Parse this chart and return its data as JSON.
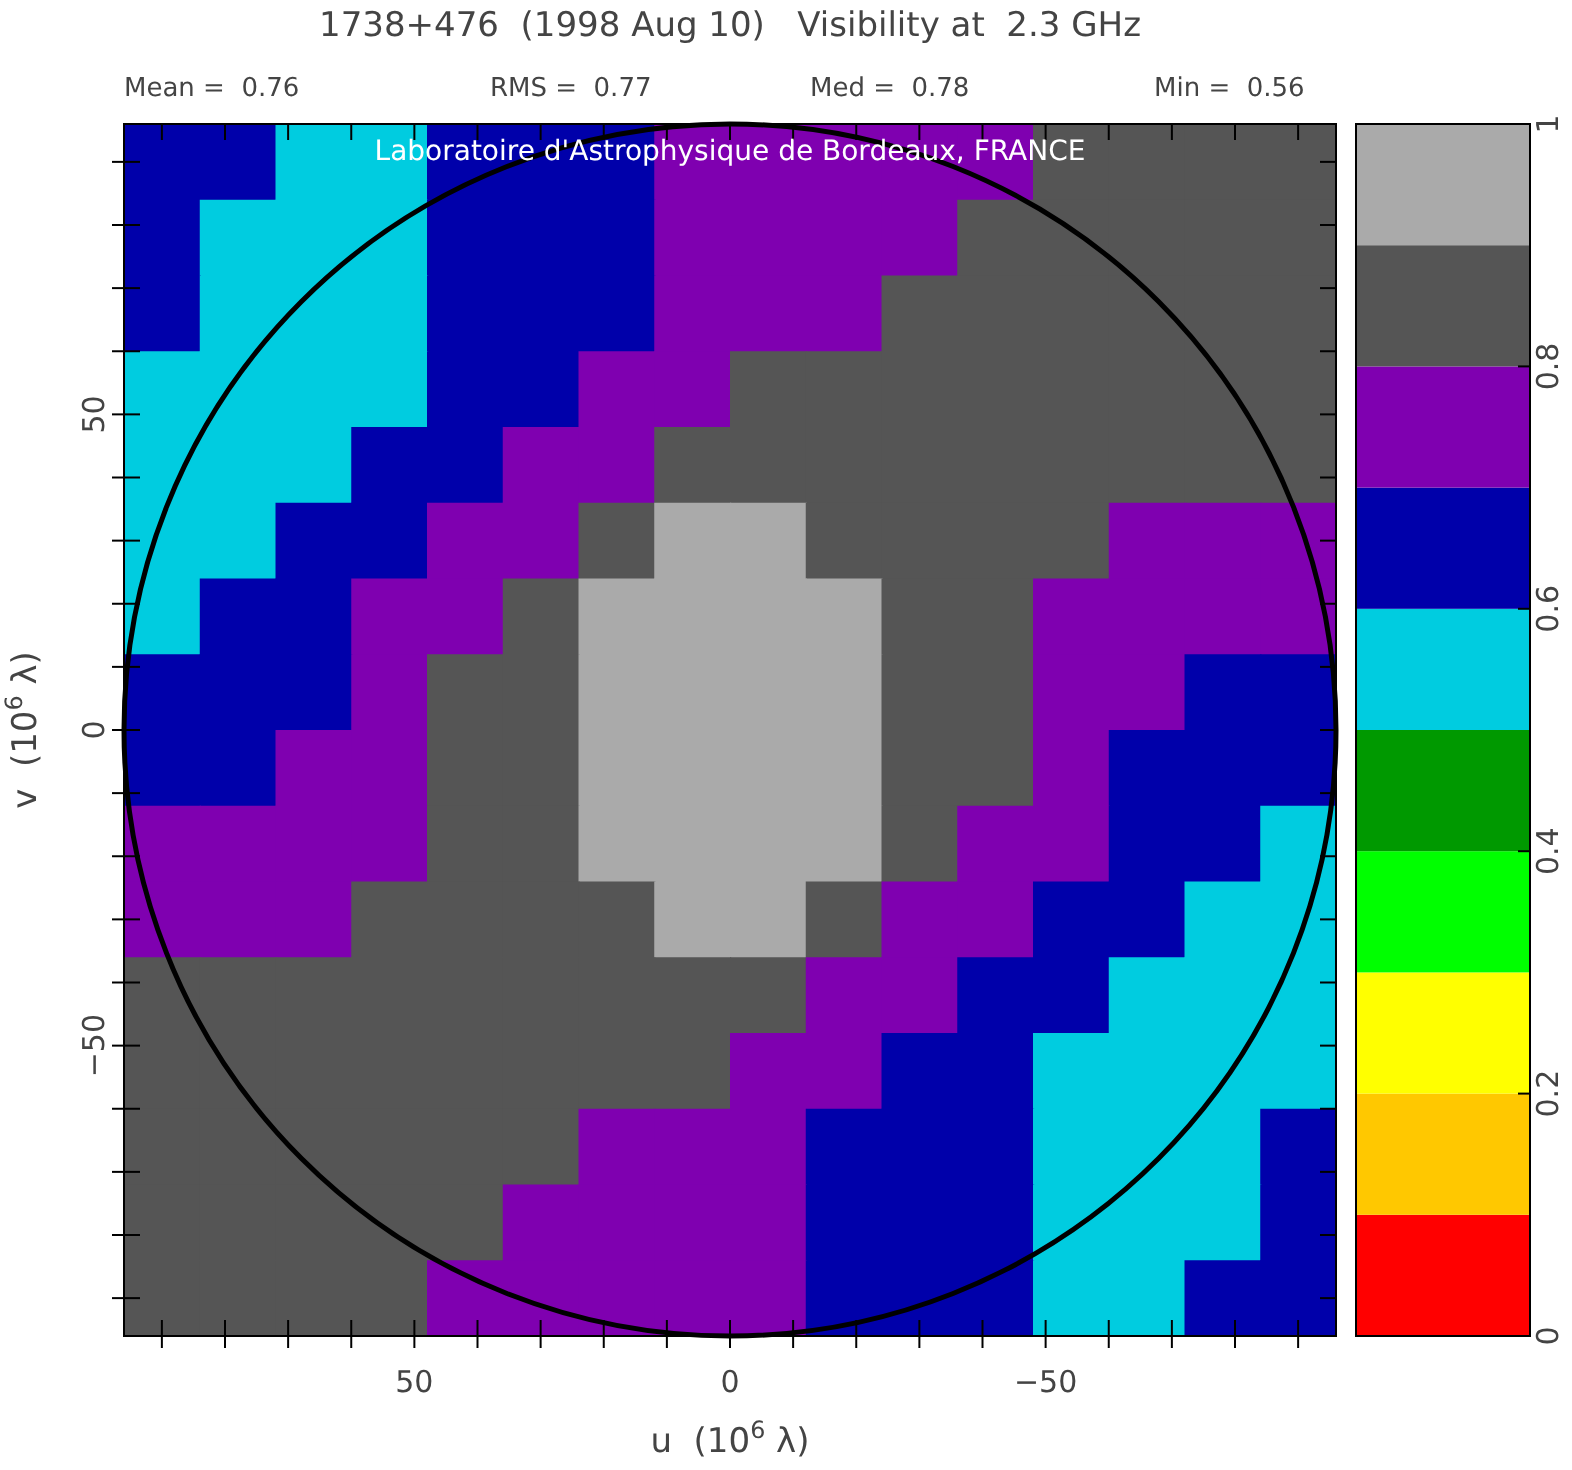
{
  "chart_data": {
    "type": "scatter",
    "marker": "square",
    "title": "1738+476  (1998 Aug 10)   Visibility at  2.3 GHz",
    "xlabel": "u  (10$^{6}$ λ)",
    "ylabel": "v  (10$^{6}$ λ)",
    "annotations": [
      "Mean =  0.76",
      "RMS =  0.77",
      "Med =  0.78",
      "Min =  0.56",
      "Laboratoire d'Astrophysique de Bordeaux, FRANCE"
    ],
    "xlim": [
      96,
      -96
    ],
    "ylim": [
      -96,
      96
    ],
    "xticks": [
      {
        "value": 90,
        "label": null
      },
      {
        "value": 80,
        "label": null
      },
      {
        "value": 70,
        "label": null
      },
      {
        "value": 60,
        "label": null
      },
      50,
      {
        "value": 40,
        "label": null
      },
      {
        "value": 30,
        "label": null
      },
      {
        "value": 20,
        "label": null
      },
      {
        "value": 10,
        "label": null
      },
      0,
      {
        "value": -10,
        "label": null
      },
      {
        "value": -20,
        "label": null
      },
      {
        "value": -30,
        "label": null
      },
      {
        "value": -40,
        "label": null
      },
      {
        "value": -50,
        "label": "−50"
      },
      {
        "value": -60,
        "label": null
      },
      {
        "value": -70,
        "label": null
      },
      {
        "value": -80,
        "label": null
      },
      {
        "value": -90,
        "label": null
      }
    ],
    "yticks": [
      {
        "value": -90,
        "label": null
      },
      {
        "value": -80,
        "label": null
      },
      {
        "value": -70,
        "label": null
      },
      {
        "value": -60,
        "label": null
      },
      {
        "value": -50,
        "label": "−50"
      },
      {
        "value": -40,
        "label": null
      },
      {
        "value": -30,
        "label": null
      },
      {
        "value": -20,
        "label": null
      },
      {
        "value": -10,
        "label": null
      },
      0,
      {
        "value": 10,
        "label": null
      },
      {
        "value": 20,
        "label": null
      },
      {
        "value": 30,
        "label": null
      },
      {
        "value": 40,
        "label": null
      },
      50,
      {
        "value": 60,
        "label": null
      },
      {
        "value": 70,
        "label": null
      },
      {
        "value": 80,
        "label": null
      },
      {
        "value": 90,
        "label": null
      }
    ],
    "clim": [
      0,
      1
    ],
    "cticks": [
      0,
      0.2,
      0.4,
      0.6,
      0.8,
      1
    ],
    "colors": [
      "#ff0000",
      "#ffc800",
      "#ffff00",
      "#00ff00",
      "#009900",
      "#00cce0",
      "#0000aa",
      "#7f00b0",
      "#555555",
      "#aaaaaa"
    ],
    "x": [
      90,
      78,
      66,
      54,
      42,
      30,
      18,
      6,
      -6,
      -18,
      -30,
      -42,
      -54,
      -66,
      -78,
      -90
    ],
    "series": [
      {
        "values": [
          90,
          90,
          90,
          90,
          90,
          90,
          90,
          90,
          90,
          90,
          90,
          90,
          90,
          90,
          90,
          90
        ],
        "colors": [
          "#0000aa",
          "#0000aa",
          "#00cce0",
          "#00cce0",
          "#0000aa",
          "#0000aa",
          "#0000aa",
          "#7f00b0",
          "#7f00b0",
          "#7f00b0",
          "#7f00b0",
          "#7f00b0",
          "#555555",
          "#555555",
          "#555555",
          "#555555"
        ]
      },
      {
        "values": [
          78,
          78,
          78,
          78,
          78,
          78,
          78,
          78,
          78,
          78,
          78,
          78,
          78,
          78,
          78,
          78
        ],
        "colors": [
          "#0000aa",
          "#00cce0",
          "#00cce0",
          "#00cce0",
          "#0000aa",
          "#0000aa",
          "#0000aa",
          "#7f00b0",
          "#7f00b0",
          "#7f00b0",
          "#7f00b0",
          "#555555",
          "#555555",
          "#555555",
          "#555555",
          "#555555"
        ]
      },
      {
        "values": [
          66,
          66,
          66,
          66,
          66,
          66,
          66,
          66,
          66,
          66,
          66,
          66,
          66,
          66,
          66,
          66
        ],
        "colors": [
          "#0000aa",
          "#00cce0",
          "#00cce0",
          "#00cce0",
          "#0000aa",
          "#0000aa",
          "#0000aa",
          "#7f00b0",
          "#7f00b0",
          "#7f00b0",
          "#555555",
          "#555555",
          "#555555",
          "#555555",
          "#555555",
          "#555555"
        ]
      },
      {
        "values": [
          54,
          54,
          54,
          54,
          54,
          54,
          54,
          54,
          54,
          54,
          54,
          54,
          54,
          54,
          54,
          54
        ],
        "colors": [
          "#00cce0",
          "#00cce0",
          "#00cce0",
          "#00cce0",
          "#0000aa",
          "#0000aa",
          "#7f00b0",
          "#7f00b0",
          "#555555",
          "#555555",
          "#555555",
          "#555555",
          "#555555",
          "#555555",
          "#555555",
          "#555555"
        ]
      },
      {
        "values": [
          42,
          42,
          42,
          42,
          42,
          42,
          42,
          42,
          42,
          42,
          42,
          42,
          42,
          42,
          42,
          42
        ],
        "colors": [
          "#00cce0",
          "#00cce0",
          "#00cce0",
          "#0000aa",
          "#0000aa",
          "#7f00b0",
          "#7f00b0",
          "#555555",
          "#555555",
          "#555555",
          "#555555",
          "#555555",
          "#555555",
          "#555555",
          "#555555",
          "#555555"
        ]
      },
      {
        "values": [
          30,
          30,
          30,
          30,
          30,
          30,
          30,
          30,
          30,
          30,
          30,
          30,
          30,
          30,
          30,
          30
        ],
        "colors": [
          "#00cce0",
          "#00cce0",
          "#0000aa",
          "#0000aa",
          "#7f00b0",
          "#7f00b0",
          "#555555",
          "#aaaaaa",
          "#aaaaaa",
          "#555555",
          "#555555",
          "#555555",
          "#555555",
          "#7f00b0",
          "#7f00b0",
          "#7f00b0"
        ]
      },
      {
        "values": [
          18,
          18,
          18,
          18,
          18,
          18,
          18,
          18,
          18,
          18,
          18,
          18,
          18,
          18,
          18,
          18
        ],
        "colors": [
          "#00cce0",
          "#0000aa",
          "#0000aa",
          "#7f00b0",
          "#7f00b0",
          "#555555",
          "#aaaaaa",
          "#aaaaaa",
          "#aaaaaa",
          "#aaaaaa",
          "#555555",
          "#555555",
          "#7f00b0",
          "#7f00b0",
          "#7f00b0",
          "#7f00b0"
        ]
      },
      {
        "values": [
          6,
          6,
          6,
          6,
          6,
          6,
          6,
          6,
          6,
          6,
          6,
          6,
          6,
          6,
          6,
          6
        ],
        "colors": [
          "#0000aa",
          "#0000aa",
          "#0000aa",
          "#7f00b0",
          "#555555",
          "#555555",
          "#aaaaaa",
          "#aaaaaa",
          "#aaaaaa",
          "#aaaaaa",
          "#555555",
          "#555555",
          "#7f00b0",
          "#7f00b0",
          "#0000aa",
          "#0000aa"
        ]
      },
      {
        "values": [
          -6,
          -6,
          -6,
          -6,
          -6,
          -6,
          -6,
          -6,
          -6,
          -6,
          -6,
          -6,
          -6,
          -6,
          -6,
          -6
        ],
        "colors": [
          "#0000aa",
          "#0000aa",
          "#7f00b0",
          "#7f00b0",
          "#555555",
          "#555555",
          "#aaaaaa",
          "#aaaaaa",
          "#aaaaaa",
          "#aaaaaa",
          "#555555",
          "#555555",
          "#7f00b0",
          "#0000aa",
          "#0000aa",
          "#0000aa"
        ]
      },
      {
        "values": [
          -18,
          -18,
          -18,
          -18,
          -18,
          -18,
          -18,
          -18,
          -18,
          -18,
          -18,
          -18,
          -18,
          -18,
          -18,
          -18
        ],
        "colors": [
          "#7f00b0",
          "#7f00b0",
          "#7f00b0",
          "#7f00b0",
          "#555555",
          "#555555",
          "#aaaaaa",
          "#aaaaaa",
          "#aaaaaa",
          "#aaaaaa",
          "#555555",
          "#7f00b0",
          "#7f00b0",
          "#0000aa",
          "#0000aa",
          "#00cce0"
        ]
      },
      {
        "values": [
          -30,
          -30,
          -30,
          -30,
          -30,
          -30,
          -30,
          -30,
          -30,
          -30,
          -30,
          -30,
          -30,
          -30,
          -30,
          -30
        ],
        "colors": [
          "#7f00b0",
          "#7f00b0",
          "#7f00b0",
          "#555555",
          "#555555",
          "#555555",
          "#555555",
          "#aaaaaa",
          "#aaaaaa",
          "#555555",
          "#7f00b0",
          "#7f00b0",
          "#0000aa",
          "#0000aa",
          "#00cce0",
          "#00cce0"
        ]
      },
      {
        "values": [
          -42,
          -42,
          -42,
          -42,
          -42,
          -42,
          -42,
          -42,
          -42,
          -42,
          -42,
          -42,
          -42,
          -42,
          -42,
          -42
        ],
        "colors": [
          "#555555",
          "#555555",
          "#555555",
          "#555555",
          "#555555",
          "#555555",
          "#555555",
          "#555555",
          "#555555",
          "#7f00b0",
          "#7f00b0",
          "#0000aa",
          "#0000aa",
          "#00cce0",
          "#00cce0",
          "#00cce0"
        ]
      },
      {
        "values": [
          -54,
          -54,
          -54,
          -54,
          -54,
          -54,
          -54,
          -54,
          -54,
          -54,
          -54,
          -54,
          -54,
          -54,
          -54,
          -54
        ],
        "colors": [
          "#555555",
          "#555555",
          "#555555",
          "#555555",
          "#555555",
          "#555555",
          "#555555",
          "#555555",
          "#7f00b0",
          "#7f00b0",
          "#0000aa",
          "#0000aa",
          "#00cce0",
          "#00cce0",
          "#00cce0",
          "#00cce0"
        ]
      },
      {
        "values": [
          -66,
          -66,
          -66,
          -66,
          -66,
          -66,
          -66,
          -66,
          -66,
          -66,
          -66,
          -66,
          -66,
          -66,
          -66,
          -66
        ],
        "colors": [
          "#555555",
          "#555555",
          "#555555",
          "#555555",
          "#555555",
          "#555555",
          "#7f00b0",
          "#7f00b0",
          "#7f00b0",
          "#0000aa",
          "#0000aa",
          "#0000aa",
          "#00cce0",
          "#00cce0",
          "#00cce0",
          "#0000aa"
        ]
      },
      {
        "values": [
          -78,
          -78,
          -78,
          -78,
          -78,
          -78,
          -78,
          -78,
          -78,
          -78,
          -78,
          -78,
          -78,
          -78,
          -78,
          -78
        ],
        "colors": [
          "#555555",
          "#555555",
          "#555555",
          "#555555",
          "#555555",
          "#7f00b0",
          "#7f00b0",
          "#7f00b0",
          "#7f00b0",
          "#0000aa",
          "#0000aa",
          "#0000aa",
          "#00cce0",
          "#00cce0",
          "#00cce0",
          "#0000aa"
        ]
      },
      {
        "values": [
          -90,
          -90,
          -90,
          -90,
          -90,
          -90,
          -90,
          -90,
          -90,
          -90,
          -90,
          -90,
          -90,
          -90,
          -90,
          -90
        ],
        "colors": [
          "#555555",
          "#555555",
          "#555555",
          "#555555",
          "#7f00b0",
          "#7f00b0",
          "#7f00b0",
          "#7f00b0",
          "#7f00b0",
          "#0000aa",
          "#0000aa",
          "#0000aa",
          "#00cce0",
          "#00cce0",
          "#0000aa",
          "#0000aa"
        ]
      }
    ]
  }
}
